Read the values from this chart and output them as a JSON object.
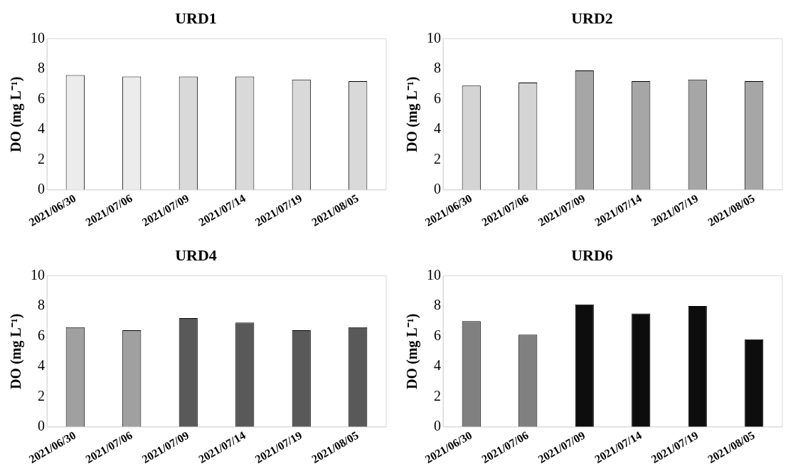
{
  "chart_data": [
    {
      "type": "bar",
      "title": "URD1",
      "ylabel": "DO (mg L⁻¹)",
      "categories": [
        "2021/06/30",
        "2021/07/06",
        "2021/07/09",
        "2021/07/14",
        "2021/07/19",
        "2021/08/05"
      ],
      "values": [
        7.6,
        7.5,
        7.5,
        7.5,
        7.3,
        7.2
      ],
      "colors": [
        "#ececec",
        "#ececec",
        "#d9d9d9",
        "#d9d9d9",
        "#d9d9d9",
        "#d9d9d9"
      ],
      "ylim": [
        0,
        10
      ],
      "yticks": [
        0,
        2,
        4,
        6,
        8,
        10
      ],
      "grid": false
    },
    {
      "type": "bar",
      "title": "URD2",
      "ylabel": "DO (mg L⁻¹)",
      "categories": [
        "2021/06/30",
        "2021/07/06",
        "2021/07/09",
        "2021/07/14",
        "2021/07/19",
        "2021/08/05"
      ],
      "values": [
        6.9,
        7.1,
        7.9,
        7.2,
        7.3,
        7.2
      ],
      "colors": [
        "#d4d4d4",
        "#d4d4d4",
        "#a6a6a6",
        "#a6a6a6",
        "#a6a6a6",
        "#a6a6a6"
      ],
      "ylim": [
        0,
        10
      ],
      "yticks": [
        0,
        2,
        4,
        6,
        8,
        10
      ],
      "grid": false
    },
    {
      "type": "bar",
      "title": "URD4",
      "ylabel": "DO (mg L⁻¹)",
      "categories": [
        "2021/06/30",
        "2021/07/06",
        "2021/07/09",
        "2021/07/14",
        "2021/07/19",
        "2021/08/05"
      ],
      "values": [
        6.6,
        6.4,
        7.2,
        6.9,
        6.4,
        6.6
      ],
      "colors": [
        "#a0a0a0",
        "#a0a0a0",
        "#595959",
        "#595959",
        "#595959",
        "#595959"
      ],
      "ylim": [
        0,
        10
      ],
      "yticks": [
        0,
        2,
        4,
        6,
        8,
        10
      ],
      "grid": false
    },
    {
      "type": "bar",
      "title": "URD6",
      "ylabel": "DO (mg L⁻¹)",
      "categories": [
        "2021/06/30",
        "2021/07/06",
        "2021/07/09",
        "2021/07/14",
        "2021/07/19",
        "2021/08/05"
      ],
      "values": [
        7.0,
        6.1,
        8.1,
        7.5,
        8.0,
        5.8
      ],
      "colors": [
        "#808080",
        "#808080",
        "#0d0d0d",
        "#0d0d0d",
        "#0d0d0d",
        "#0d0d0d"
      ],
      "ylim": [
        0,
        10
      ],
      "yticks": [
        0,
        2,
        4,
        6,
        8,
        10
      ],
      "grid": false
    }
  ]
}
